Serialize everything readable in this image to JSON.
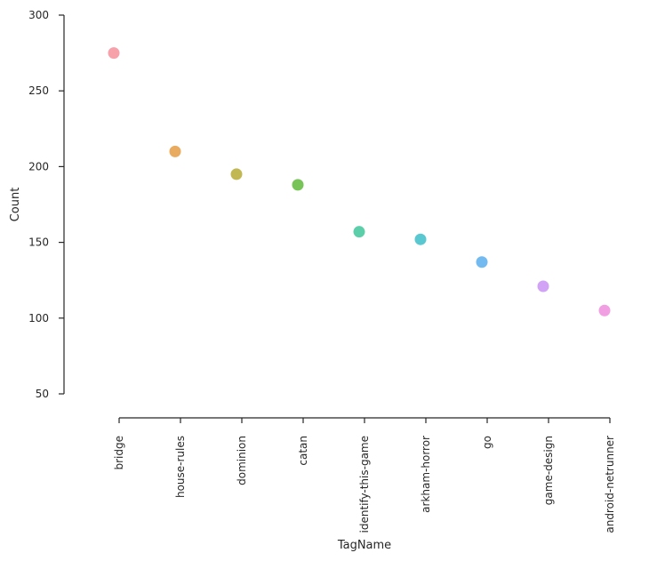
{
  "chart_data": {
    "type": "scatter",
    "title": "",
    "xlabel": "TagName",
    "ylabel": "Count",
    "categories": [
      "bridge",
      "house-rules",
      "dominion",
      "catan",
      "identify-this-game",
      "arkham-horror",
      "go",
      "game-design",
      "android-netrunner"
    ],
    "values": [
      275,
      210,
      195,
      188,
      157,
      152,
      137,
      121,
      105
    ],
    "ylim": [
      50,
      300
    ],
    "yticks": [
      50,
      100,
      150,
      200,
      250,
      300
    ],
    "grid": false,
    "legend": "none",
    "colors": [
      "#f7a1ab",
      "#e9ab60",
      "#c2b853",
      "#78c458",
      "#5ccfaa",
      "#5ac8d0",
      "#72baf0",
      "#d2a2f6",
      "#f29ee2"
    ]
  }
}
